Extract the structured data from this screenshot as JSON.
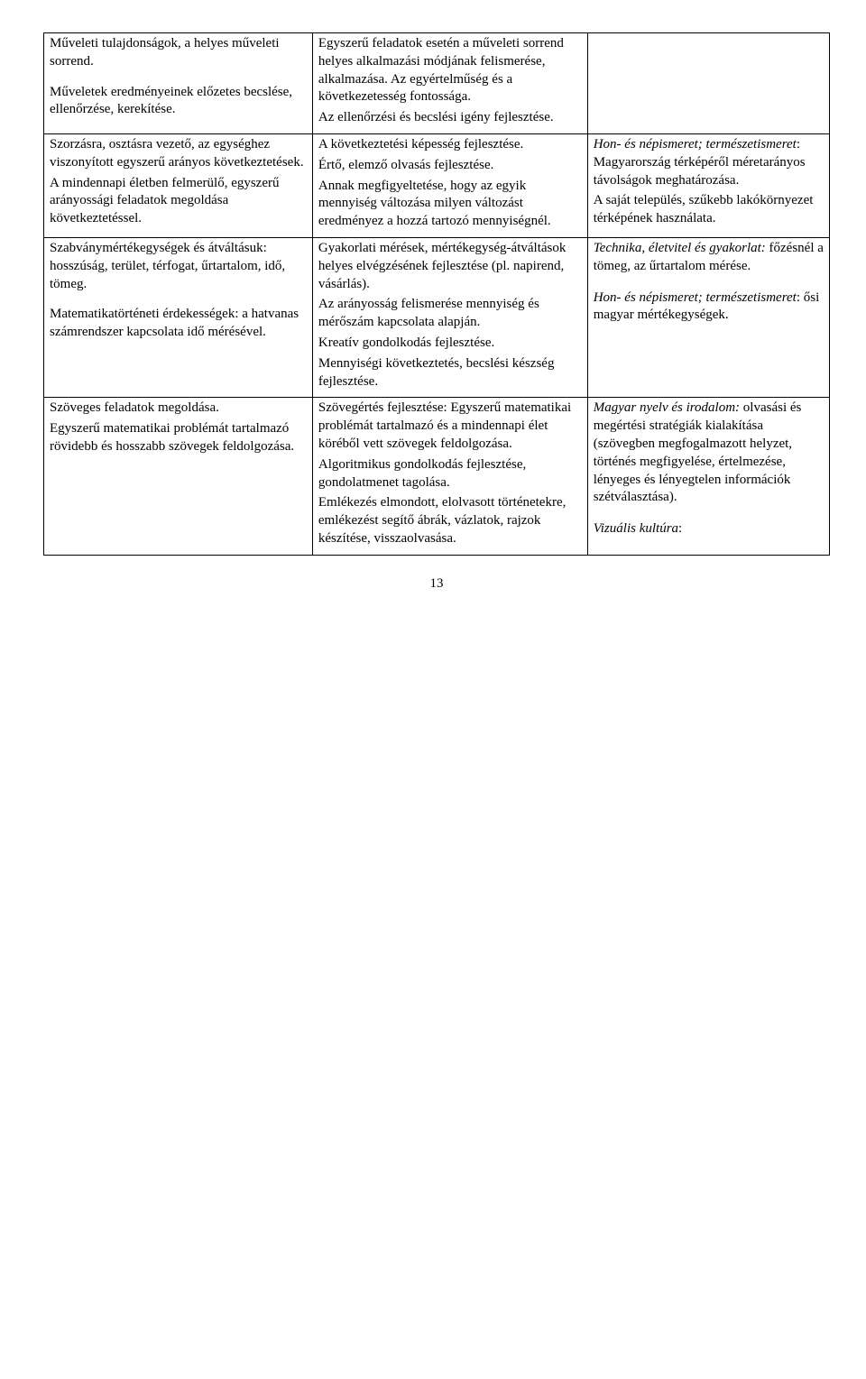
{
  "rows": [
    {
      "c1": [
        "Műveleti tulajdonságok, a helyes műveleti sorrend.",
        "Műveletek eredményeinek előzetes becslése, ellenőrzése, kerekítése."
      ],
      "c2": [
        "Egyszerű feladatok esetén a műveleti sorrend helyes alkalmazási módjának felismerése, alkalmazása. Az egyértelműség és a következetesség fontossága.",
        "Az ellenőrzési és becslési igény fejlesztése."
      ],
      "c3": []
    },
    {
      "c1": [
        "Szorzásra, osztásra vezető, az egységhez viszonyított egyszerű arányos következtetések.",
        "A mindennapi életben felmerülő, egyszerű arányossági feladatok megoldása következtetéssel."
      ],
      "c2": [
        "A következtetési képesség fejlesztése.",
        "Értő, elemző olvasás fejlesztése.",
        "Annak megfigyeltetése, hogy az egyik mennyiség változása milyen változást eredményez a hozzá tartozó mennyiségnél."
      ],
      "c3": [
        "<i>Hon- és népismeret; természetismeret</i>: Magyarország térképéről méretarányos távolságok meghatározása.",
        "A saját település, szűkebb lakókörnyezet térképének használata."
      ]
    },
    {
      "c1": [
        "Szabványmértékegységek és átváltásuk: hosszúság, terület, térfogat, űrtartalom, idő, tömeg.",
        "Matematikatörténeti érdekességek: a hatvanas számrendszer kapcsolata idő mérésével."
      ],
      "c1_gap_after": 0,
      "c2": [
        "Gyakorlati mérések, mértékegység-átváltások helyes elvégzésének fejlesztése (pl. napirend, vásárlás).",
        "Az arányosság felismerése mennyiség és mérőszám kapcsolata alapján.",
        "Kreatív gondolkodás fejlesztése.",
        "Mennyiségi következtetés, becslési készség fejlesztése."
      ],
      "c3": [
        "<i>Technika, életvitel és gyakorlat:</i> főzésnél a tömeg, az űrtartalom mérése.",
        "",
        "<i>Hon- és népismeret; természetismeret</i>: ősi magyar mértékegységek."
      ],
      "c3_block_gap": true
    },
    {
      "c1": [
        "Szöveges feladatok megoldása.",
        "Egyszerű matematikai problémát tartalmazó rövidebb és hosszabb szövegek feldolgozása."
      ],
      "c2": [
        "Szövegértés fejlesztése: Egyszerű matematikai problémát tartalmazó és a mindennapi élet köréből vett szövegek feldolgozása.",
        "Algoritmikus gondolkodás fejlesztése, gondolatmenet tagolása.",
        "Emlékezés elmondott, elolvasott történetekre, emlékezést segítő ábrák, vázlatok, rajzok készítése, visszaolvasása."
      ],
      "c3": [
        "<i>Magyar nyelv és irodalom:</i> olvasási és megértési stratégiák kialakítása (szövegben megfogalmazott helyzet, történés megfigyelése, értelmezése, lényeges és lényegtelen információk szétválasztása).",
        "",
        "<i>Vizuális kultúra</i>:"
      ],
      "c3_block_gap": true
    }
  ],
  "page_number": "13"
}
